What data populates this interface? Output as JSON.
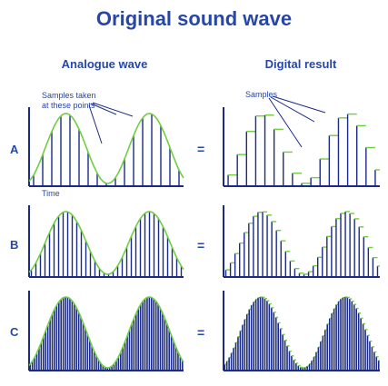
{
  "title": "Original sound wave",
  "headers": {
    "analogue": "Analogue wave",
    "digital": "Digital result"
  },
  "rows": [
    {
      "label": "A",
      "samples": 17
    },
    {
      "label": "B",
      "samples": 34
    },
    {
      "label": "C",
      "samples": 70
    }
  ],
  "equals": "=",
  "annotations": {
    "samples_taken": "Samples taken",
    "at_points": "at these points",
    "time": "Time",
    "samples": "Samples"
  },
  "colors": {
    "text": "#2646a8",
    "lines": "#1a2a86",
    "wave": "#6fcf3c"
  }
}
